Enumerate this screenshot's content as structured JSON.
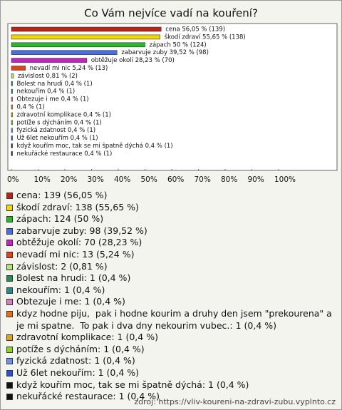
{
  "chart_data": {
    "type": "bar",
    "orientation": "horizontal",
    "title": "Co Vám nejvíce vadí na kouření?",
    "values": [
      56.05,
      55.65,
      50,
      39.52,
      28.23,
      5.24,
      0.81,
      0.4,
      0.4,
      0.4,
      0.4,
      0.4,
      0.4,
      0.4,
      0.4,
      0.4,
      0.4
    ],
    "value_labels": [
      "cena 56,05 % (139)",
      "škodí zdraví 55,65 % (138)",
      "zápach 50 % (124)",
      "zabarvuje zuby 39,52 % (98)",
      "obtěžuje okolí 28,23 % (70)",
      "nevadí mi nic 5,24 % (13)",
      "závislost 0,81 % (2)",
      "Bolest na hrudi 0,4 % (1)",
      "nekouřím 0,4 % (1)",
      "Obtezuje i me 0,4 % (1)",
      "0,4 % (1)",
      "zdravotní komplikace 0,4 % (1)",
      "potíže s dýcháním 0,4 % (1)",
      "fyzická zdatnost 0,4 % (1)",
      "Už 6let nekouřím 0,4 % (1)",
      "když kouřím moc, tak se mi špatně dýchá 0,4 % (1)",
      "nekuřácké restaurace 0,4 % (1)"
    ],
    "colors": [
      "#b8231a",
      "#f2d600",
      "#2cb52c",
      "#4a6de0",
      "#c023c0",
      "#e0421a",
      "#b9e07a",
      "#2a8a5c",
      "#2a8a8a",
      "#d07fc2",
      "#e0701e",
      "#e0a21e",
      "#8fd21f",
      "#7192e0",
      "#3050d0",
      "#111111",
      "#111111"
    ],
    "legend_labels": [
      "cena: 139 (56,05 %)",
      "škodí zdraví: 138 (55,65 %)",
      "zápach: 124 (50 %)",
      "zabarvuje zuby: 98 (39,52 %)",
      "obtěžuje okolí: 70 (28,23 %)",
      "nevadí mi nic: 13 (5,24 %)",
      "závislost: 2 (0,81 %)",
      "Bolest na hrudi: 1 (0,4 %)",
      "nekouřím: 1 (0,4 %)",
      "Obtezuje i me: 1 (0,4 %)",
      "kdyz hodne piju,  pak i hodne kourim a druhy den jsem \"prekourena\" a je mi spatne.  To pak i dva dny nekourim vubec.: 1 (0,4 %)",
      "zdravotní komplikace: 1 (0,4 %)",
      "potíže s dýcháním: 1 (0,4 %)",
      "fyzická zdatnost: 1 (0,4 %)",
      "Už 6let nekouřím: 1 (0,4 %)",
      "když kouřím moc, tak se mi špatně dýchá: 1 (0,4 %)",
      "nekuřácké restaurace: 1 (0,4 %)"
    ],
    "xlim": [
      0,
      100
    ],
    "xticks": [
      {
        "value": 0,
        "label": "0%"
      },
      {
        "value": 10,
        "label": "10%"
      },
      {
        "value": 20,
        "label": "20%"
      },
      {
        "value": 30,
        "label": "30%"
      },
      {
        "value": 40,
        "label": "40%"
      },
      {
        "value": 50,
        "label": "50%"
      },
      {
        "value": 60,
        "label": "60%"
      },
      {
        "value": 70,
        "label": "70%"
      },
      {
        "value": 80,
        "label": "80%"
      },
      {
        "value": 90,
        "label": "90%"
      },
      {
        "value": 100,
        "label": "100%"
      }
    ],
    "source": "zdroj: https://vliv-koureni-na-zdravi-zubu.vyplnto.cz"
  }
}
